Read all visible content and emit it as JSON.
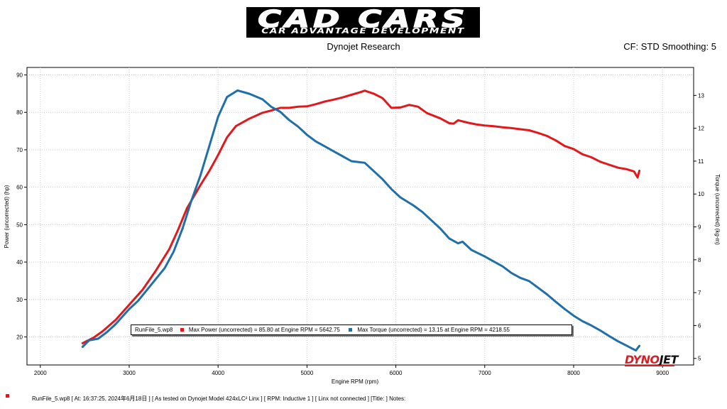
{
  "header": {
    "logo_title": "CAD CARS",
    "logo_subtitle": "CAR ADVANTAGE DEVELOPMENT",
    "subtitle": "Dynojet Research",
    "correction": "CF: STD Smoothing: 5"
  },
  "brand": {
    "part1": "DYNO",
    "part2": "JET"
  },
  "colors": {
    "power": "#e0191c",
    "torque": "#1f6fa8"
  },
  "legend": {
    "file": "RunFile_5.wp8",
    "power_text": "Max Power (uncorrected) = 85.80 at Engine RPM = 5642.75",
    "torque_text": "Max Torque (uncorrected) = 13.15 at Engine RPM = 4218.55"
  },
  "footer": {
    "text": "RunFile_5.wp8  [  At:  16:37:25,  2024年6月18日 ] [ As tested on Dynojet Model 424xLC² Linx ] [ RPM: Inductive 1 ] [ Linx not connected ] [Title: ]   Notes:"
  },
  "chart_data": {
    "type": "line",
    "xlabel": "Engine RPM (rpm)",
    "ylabel_left": "Power (uncorrected) (hp)",
    "ylabel_right": "Torque (uncorrected) (kg-m)",
    "xlim": [
      1850,
      9350
    ],
    "ylim_left": [
      12.5,
      92
    ],
    "ylim_right": [
      4.8,
      13.85
    ],
    "xticks": [
      2000,
      3000,
      4000,
      5000,
      6000,
      7000,
      8000,
      9000
    ],
    "yticks_left": [
      20,
      30,
      40,
      50,
      60,
      70,
      80,
      90
    ],
    "yticks_right": [
      5,
      6,
      7,
      8,
      9,
      10,
      11,
      12,
      13
    ],
    "grid": true,
    "series": [
      {
        "name": "Max Power (uncorrected)",
        "axis": "left",
        "x": [
          2475,
          2600,
          2700,
          2850,
          3000,
          3150,
          3300,
          3450,
          3550,
          3650,
          3800,
          3900,
          4000,
          4100,
          4200,
          4350,
          4500,
          4600,
          4700,
          4800,
          4900,
          5000,
          5100,
          5200,
          5300,
          5400,
          5500,
          5600,
          5650,
          5750,
          5850,
          5950,
          6050,
          6150,
          6250,
          6350,
          6500,
          6600,
          6650,
          6700,
          6800,
          6900,
          7000,
          7100,
          7200,
          7300,
          7400,
          7500,
          7600,
          7700,
          7800,
          7900,
          8000,
          8100,
          8200,
          8300,
          8400,
          8500,
          8600,
          8680,
          8720,
          8740
        ],
        "y": [
          18.3,
          19.8,
          21.5,
          24.6,
          28.6,
          32.6,
          37.7,
          43.4,
          48.6,
          54.4,
          60.5,
          64.3,
          68.6,
          73.3,
          76.3,
          78.3,
          79.9,
          80.5,
          81.2,
          81.2,
          81.5,
          81.6,
          82.2,
          82.9,
          83.4,
          84.0,
          84.7,
          85.4,
          85.8,
          85.0,
          83.8,
          81.2,
          81.3,
          82.0,
          81.5,
          79.8,
          78.4,
          77.1,
          77.0,
          77.9,
          77.3,
          76.8,
          76.5,
          76.3,
          76.0,
          75.8,
          75.5,
          75.2,
          74.5,
          73.7,
          72.5,
          71.0,
          70.2,
          68.8,
          68.0,
          66.8,
          66.0,
          65.2,
          64.8,
          64.2,
          62.6,
          64.4
        ]
      },
      {
        "name": "Max Torque (uncorrected)",
        "axis": "right",
        "x": [
          2475,
          2550,
          2650,
          2750,
          2850,
          3000,
          3100,
          3250,
          3400,
          3500,
          3600,
          3700,
          3800,
          3900,
          4000,
          4100,
          4220,
          4350,
          4500,
          4600,
          4700,
          4800,
          4900,
          5000,
          5100,
          5200,
          5300,
          5400,
          5500,
          5650,
          5750,
          5850,
          5950,
          6050,
          6200,
          6300,
          6400,
          6500,
          6600,
          6700,
          6750,
          6850,
          7000,
          7100,
          7200,
          7300,
          7400,
          7500,
          7600,
          7700,
          7800,
          7900,
          8000,
          8100,
          8200,
          8300,
          8400,
          8500,
          8600,
          8700,
          8740
        ],
        "y": [
          5.35,
          5.55,
          5.6,
          5.8,
          6.05,
          6.5,
          6.75,
          7.25,
          7.75,
          8.25,
          8.95,
          9.8,
          10.55,
          11.45,
          12.35,
          12.95,
          13.15,
          13.05,
          12.88,
          12.65,
          12.5,
          12.25,
          12.05,
          11.8,
          11.6,
          11.45,
          11.3,
          11.15,
          11.0,
          10.95,
          10.7,
          10.45,
          10.15,
          9.9,
          9.65,
          9.45,
          9.2,
          8.95,
          8.65,
          8.5,
          8.55,
          8.3,
          8.1,
          7.95,
          7.8,
          7.6,
          7.45,
          7.35,
          7.15,
          6.95,
          6.72,
          6.5,
          6.3,
          6.13,
          6.0,
          5.85,
          5.68,
          5.52,
          5.38,
          5.24,
          5.38
        ]
      }
    ]
  }
}
